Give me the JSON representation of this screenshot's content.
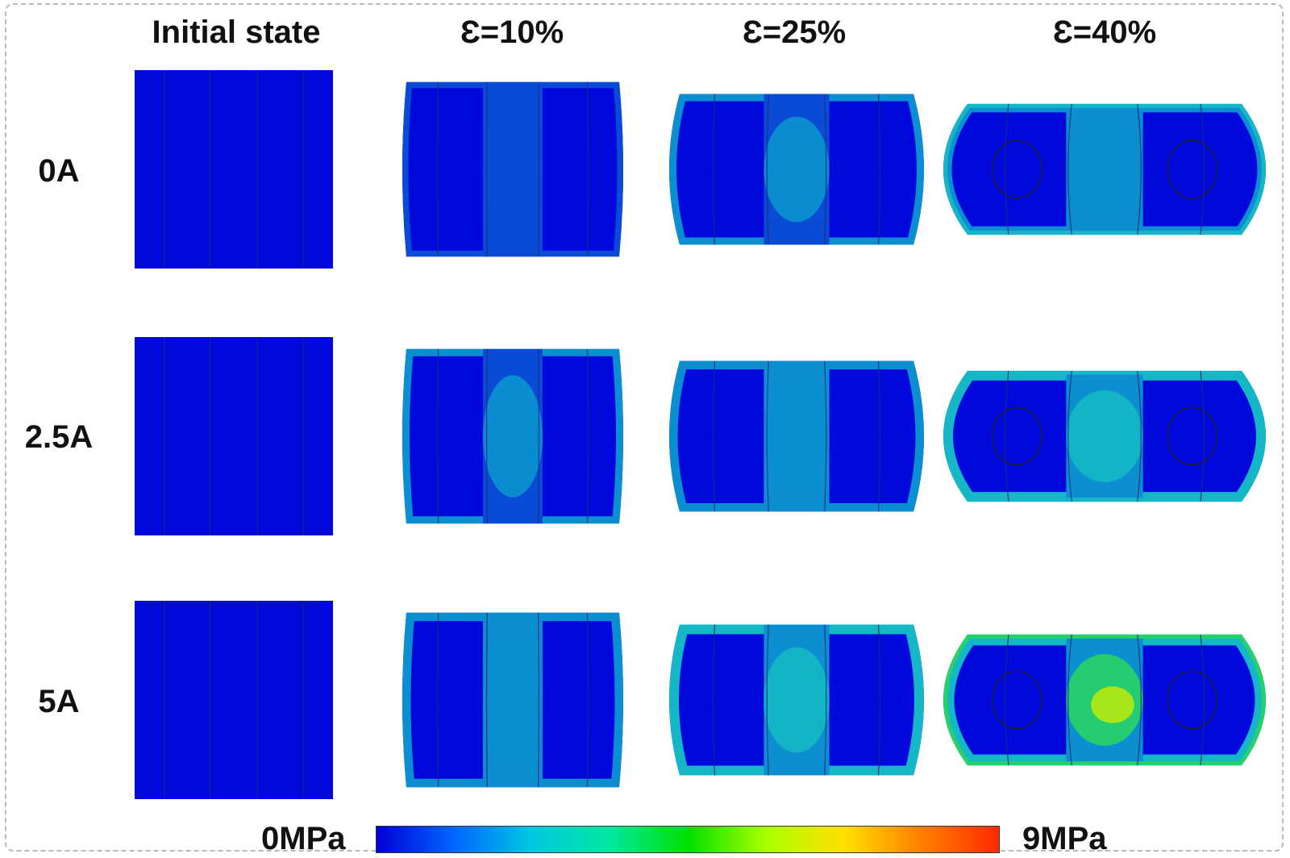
{
  "columns": [
    "Initial state",
    "Ɛ=10%",
    "Ɛ=25%",
    "Ɛ=40%"
  ],
  "rows": [
    "0A",
    "2.5A",
    "5A"
  ],
  "legend": {
    "min_label": "0MPa",
    "max_label": "9MPa",
    "colormap": [
      "#0000d6",
      "#0066ff",
      "#00c8e0",
      "#00e8a0",
      "#00e000",
      "#a8ff00",
      "#ffe000",
      "#ff8000",
      "#ff2a00"
    ]
  },
  "colors": {
    "base": "#0008dc",
    "mid_blue": "#0a4bd6",
    "light_blue": "#0b8fd0",
    "cyan": "#15b6c6",
    "green": "#27d16a",
    "yellow_green": "#a8e61a",
    "seam": "#1d2a7a"
  }
}
